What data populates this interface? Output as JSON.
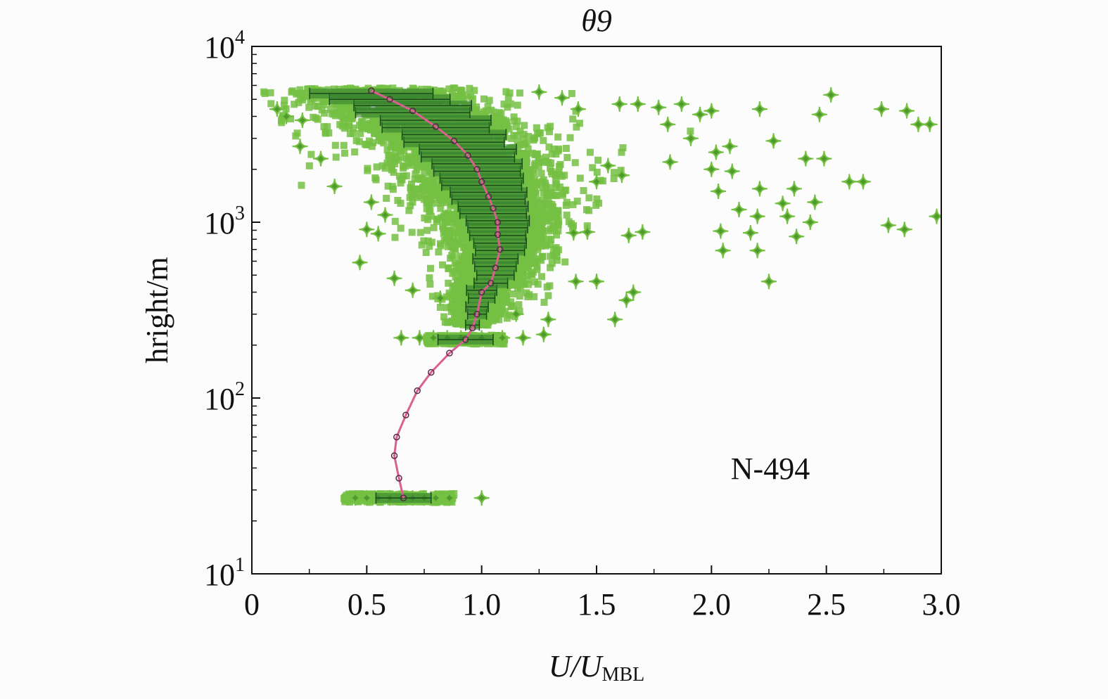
{
  "chart_data": {
    "type": "scatter",
    "title": "θ9",
    "xlabel": {
      "main": "U/U",
      "subscript": "MBL"
    },
    "ylabel": "hright/m",
    "annotation": "N-494",
    "x_scale": "linear",
    "y_scale": "log",
    "xlim": [
      0,
      3.0
    ],
    "ylim": [
      10,
      10000
    ],
    "x_ticks": [
      {
        "value": 0,
        "label": "0"
      },
      {
        "value": 0.5,
        "label": "0.5"
      },
      {
        "value": 1.0,
        "label": "1.0"
      },
      {
        "value": 1.5,
        "label": "1.5"
      },
      {
        "value": 2.0,
        "label": "2.0"
      },
      {
        "value": 2.5,
        "label": "2.5"
      },
      {
        "value": 3.0,
        "label": "3.0"
      }
    ],
    "y_ticks": [
      {
        "value": 10,
        "base": "10",
        "exp": "1"
      },
      {
        "value": 100,
        "base": "10",
        "exp": "2"
      },
      {
        "value": 1000,
        "base": "10",
        "exp": "3"
      },
      {
        "value": 10000,
        "base": "10",
        "exp": "4"
      }
    ],
    "grid": false,
    "colors": {
      "scatter": "#74c043",
      "scatter_dark": "#4f9a2c",
      "errorbar": "#1a4a1a",
      "fit_line": "#d9608f",
      "mean_marker": "#5a2a4a"
    },
    "series": [
      {
        "type": "scatter",
        "marker": "plus",
        "points": [
          [
            2.52,
            5300
          ],
          [
            2.47,
            4100
          ],
          [
            2.74,
            4400
          ],
          [
            2.85,
            4300
          ],
          [
            2.9,
            3600
          ],
          [
            2.95,
            3600
          ],
          [
            2.6,
            1700
          ],
          [
            2.66,
            1700
          ],
          [
            2.98,
            1080
          ],
          [
            2.77,
            960
          ],
          [
            2.84,
            910
          ],
          [
            2.21,
            4400
          ],
          [
            2.27,
            2900
          ],
          [
            2.41,
            2300
          ],
          [
            2.49,
            2300
          ],
          [
            2.36,
            1550
          ],
          [
            2.45,
            1300
          ],
          [
            2.21,
            1550
          ],
          [
            2.31,
            1280
          ],
          [
            2.2,
            1080
          ],
          [
            2.33,
            1080
          ],
          [
            2.43,
            1000
          ],
          [
            2.37,
            830
          ],
          [
            2.04,
            890
          ],
          [
            2.17,
            870
          ],
          [
            2.05,
            690
          ],
          [
            2.2,
            690
          ],
          [
            2.25,
            460
          ],
          [
            2.12,
            1180
          ],
          [
            2.03,
            1500
          ],
          [
            2.0,
            4300
          ],
          [
            1.95,
            4100
          ],
          [
            1.87,
            4700
          ],
          [
            1.77,
            4500
          ],
          [
            1.68,
            4700
          ],
          [
            1.6,
            4700
          ],
          [
            1.42,
            4400
          ],
          [
            1.35,
            5100
          ],
          [
            1.25,
            5500
          ],
          [
            1.81,
            3600
          ],
          [
            1.91,
            3000
          ],
          [
            2.02,
            2500
          ],
          [
            2.0,
            2000
          ],
          [
            2.09,
            1950
          ],
          [
            2.08,
            2700
          ],
          [
            1.82,
            2200
          ],
          [
            1.55,
            2100
          ],
          [
            1.61,
            1850
          ],
          [
            1.5,
            1700
          ],
          [
            1.7,
            880
          ],
          [
            1.64,
            840
          ],
          [
            1.46,
            880
          ],
          [
            1.4,
            870
          ],
          [
            1.5,
            460
          ],
          [
            1.41,
            460
          ],
          [
            1.66,
            400
          ],
          [
            1.63,
            360
          ],
          [
            1.58,
            280
          ],
          [
            1.29,
            280
          ],
          [
            1.27,
            230
          ],
          [
            1.18,
            220
          ],
          [
            1.15,
            300
          ],
          [
            0.47,
            590
          ],
          [
            0.5,
            910
          ],
          [
            0.55,
            860
          ],
          [
            0.21,
            2700
          ],
          [
            0.3,
            2300
          ],
          [
            0.36,
            1600
          ],
          [
            0.52,
            1300
          ],
          [
            0.58,
            1100
          ],
          [
            0.65,
            220
          ],
          [
            0.73,
            220
          ],
          [
            0.79,
            220
          ],
          [
            0.85,
            220
          ],
          [
            0.91,
            220
          ],
          [
            1.0,
            220
          ],
          [
            1.09,
            220
          ],
          [
            0.62,
            480
          ],
          [
            0.7,
            410
          ],
          [
            0.82,
            370
          ],
          [
            1.0,
            27
          ],
          [
            0.45,
            27
          ],
          [
            0.5,
            27
          ],
          [
            0.55,
            27
          ],
          [
            0.6,
            27
          ],
          [
            0.65,
            27
          ],
          [
            0.7,
            27
          ],
          [
            0.75,
            27
          ],
          [
            0.8,
            27
          ],
          [
            0.86,
            27
          ],
          [
            0.22,
            3800
          ],
          [
            0.15,
            4000
          ],
          [
            0.11,
            4400
          ]
        ]
      },
      {
        "type": "profile",
        "points": [
          [
            0.66,
            27
          ],
          [
            0.64,
            35
          ],
          [
            0.62,
            47
          ],
          [
            0.63,
            60
          ],
          [
            0.67,
            80
          ],
          [
            0.72,
            110
          ],
          [
            0.78,
            140
          ],
          [
            0.86,
            180
          ],
          [
            0.93,
            215
          ],
          [
            0.96,
            250
          ],
          [
            0.98,
            300
          ],
          [
            1.0,
            400
          ],
          [
            1.04,
            450
          ],
          [
            1.06,
            550
          ],
          [
            1.08,
            700
          ],
          [
            1.07,
            850
          ],
          [
            1.07,
            1000
          ],
          [
            1.05,
            1200
          ],
          [
            1.03,
            1400
          ],
          [
            1.0,
            1700
          ],
          [
            0.98,
            2000
          ],
          [
            0.94,
            2400
          ],
          [
            0.88,
            2900
          ],
          [
            0.8,
            3500
          ],
          [
            0.7,
            4300
          ],
          [
            0.6,
            5000
          ],
          [
            0.52,
            5600
          ]
        ]
      }
    ]
  }
}
